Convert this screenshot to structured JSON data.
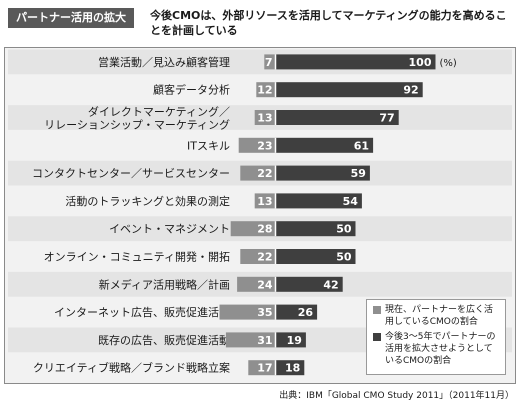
{
  "header": {
    "badge": "パートナー活用の拡大",
    "subtitle": "今後CMOは、外部リソースを活用してマーケティングの能力を高めることを計画している"
  },
  "chart_data": {
    "type": "bar",
    "unit": "(%)",
    "colors": {
      "current": "#8f8f8f",
      "future": "#3f3f3f"
    },
    "categories": [
      [
        "営業活動／見込み顧客管理"
      ],
      [
        "顧客データ分析"
      ],
      [
        "ダイレクトマーケティング／",
        "リレーションシップ・マーケティング"
      ],
      [
        "ITスキル"
      ],
      [
        "コンタクトセンター／サービスセンター"
      ],
      [
        "活動のトラッキングと効果の測定"
      ],
      [
        "イベント・マネジメント"
      ],
      [
        "オンライン・コミュニティ開発・開拓"
      ],
      [
        "新メディア活用戦略／計画"
      ],
      [
        "インターネット広告、販売促進活動"
      ],
      [
        "既存の広告、販売促進活動"
      ],
      [
        "クリエイティブ戦略／ブランド戦略立案"
      ]
    ],
    "series": [
      {
        "name": "現在、パートナーを広く活用しているCMOの割合",
        "values": [
          7,
          12,
          13,
          23,
          22,
          13,
          28,
          22,
          24,
          35,
          31,
          17
        ]
      },
      {
        "name": "今後3～5年でパートナーの活用を拡大させようとしているCMOの割合",
        "values": [
          100,
          92,
          77,
          61,
          59,
          54,
          50,
          50,
          42,
          26,
          19,
          18
        ]
      }
    ],
    "xlim": [
      0,
      100
    ]
  },
  "legend": {
    "current": "現在、パートナーを広く活用しているCMOの割合",
    "future": "今後3～5年でパートナーの活用を拡大させようとしているCMOの割合"
  },
  "source": "出典：IBM「Global CMO Study 2011」（2011年11月）"
}
